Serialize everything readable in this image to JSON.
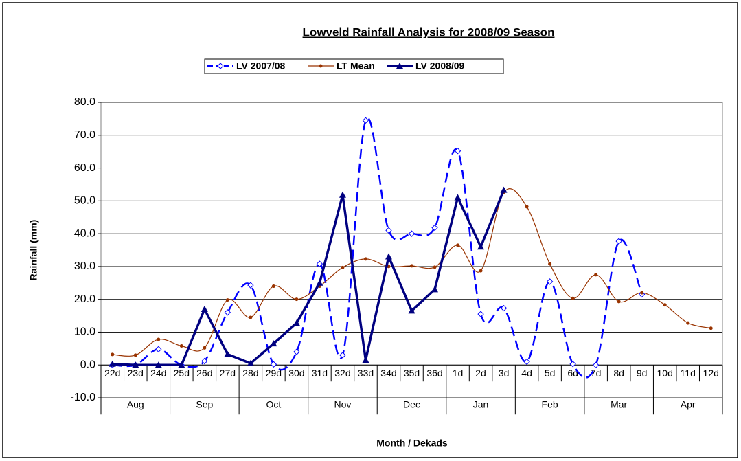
{
  "chart_data": {
    "type": "line",
    "title": "Lowveld Rainfall Analysis for 2008/09 Season",
    "xlabel": "Month / Dekads",
    "ylabel": "Rainfall (mm)",
    "categories": [
      "22d",
      "23d",
      "24d",
      "25d",
      "26d",
      "27d",
      "28d",
      "29d",
      "30d",
      "31d",
      "32d",
      "33d",
      "34d",
      "35d",
      "36d",
      "1d",
      "2d",
      "3d",
      "4d",
      "5d",
      "6d",
      "7d",
      "8d",
      "9d",
      "10d",
      "11d",
      "12d"
    ],
    "month_groups": [
      "Aug",
      "Sep",
      "Oct",
      "Nov",
      "Dec",
      "Jan",
      "Feb",
      "Mar",
      "Apr"
    ],
    "series": [
      {
        "name": "LV 2007/08",
        "color": "#0000ff",
        "style": "dashed",
        "smooth": true,
        "marker": "diamond",
        "values": [
          0,
          0,
          4.8,
          0,
          1.2,
          16,
          24.3,
          0.2,
          4,
          30.8,
          3,
          74.5,
          41,
          40,
          41.8,
          65.2,
          15.5,
          17.3,
          1,
          25.4,
          0.3,
          0,
          37.7,
          21.5,
          null,
          null,
          null
        ]
      },
      {
        "name": "LT Mean",
        "color": "#993300",
        "style": "solid",
        "smooth": true,
        "marker": "circle",
        "values": [
          3.2,
          3,
          7.8,
          5.8,
          5.2,
          19.8,
          14.5,
          24,
          20,
          24,
          29.7,
          32.3,
          30,
          30.2,
          29.8,
          36.5,
          28.7,
          52.5,
          48.2,
          30.8,
          20.3,
          27.5,
          19.3,
          22,
          18.3,
          12.8,
          11.2
        ]
      },
      {
        "name": "LV 2008/09",
        "color": "#000080",
        "style": "thick",
        "smooth": false,
        "marker": "triangle",
        "values": [
          0.3,
          0,
          0,
          0,
          17,
          3.3,
          0.5,
          6.5,
          12.8,
          25,
          51.8,
          1.5,
          33,
          16.5,
          23,
          51,
          36,
          53.3,
          null,
          null,
          null,
          null,
          null,
          null,
          null,
          null,
          null
        ]
      }
    ],
    "ylim": [
      -10,
      80
    ],
    "yticks": [
      {
        "value": -10,
        "label": "-10.0"
      },
      {
        "value": 0,
        "label": "0.0"
      },
      {
        "value": 10,
        "label": "10.0"
      },
      {
        "value": 20,
        "label": "20.0"
      },
      {
        "value": 30,
        "label": "30.0"
      },
      {
        "value": 40,
        "label": "40.0"
      },
      {
        "value": 50,
        "label": "50.0"
      },
      {
        "value": 60,
        "label": "60.0"
      },
      {
        "value": 70,
        "label": "70.0"
      },
      {
        "value": 80,
        "label": "80.0"
      }
    ],
    "grid": true,
    "legend": "top"
  }
}
